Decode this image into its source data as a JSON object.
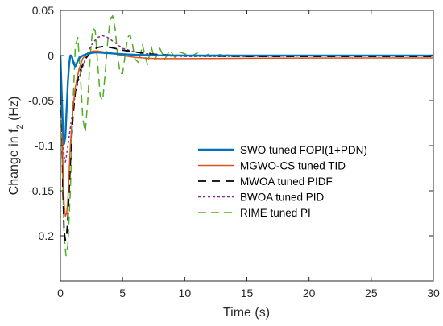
{
  "chart_data": {
    "type": "line",
    "xlabel": "Time (s)",
    "ylabel_main": "Change in f",
    "ylabel_subscript": "2",
    "ylabel_suffix": " (Hz)",
    "xlim": [
      0,
      30
    ],
    "ylim": [
      -0.25,
      0.05
    ],
    "xticks": [
      0,
      5,
      10,
      15,
      20,
      25,
      30
    ],
    "yticks": [
      0.05,
      0,
      -0.05,
      -0.1,
      -0.15,
      -0.2
    ],
    "ytick_labels": [
      "0.05",
      "0",
      "-0.05",
      "-0.1",
      "-0.15",
      "-0.2"
    ],
    "grid": false,
    "legend_position": "middle-right",
    "series": [
      {
        "name": "SWO tuned FOPI(1+PDN)",
        "color": "#0072BD",
        "dash": "solid",
        "width": 2.4,
        "x": [
          0,
          0.1,
          0.2,
          0.3,
          0.4,
          0.5,
          0.6,
          0.7,
          0.8,
          0.9,
          1.0,
          1.1,
          1.2,
          1.3,
          1.5,
          1.8,
          2.2,
          2.6,
          3.0,
          3.5,
          4.0,
          5.0,
          6.0,
          8.0,
          10.0,
          15.0,
          20.0,
          30.0
        ],
        "y": [
          0,
          -0.04,
          -0.08,
          -0.098,
          -0.09,
          -0.06,
          -0.03,
          -0.01,
          0.0,
          0.0,
          -0.005,
          -0.01,
          -0.012,
          -0.009,
          -0.003,
          0.0,
          0.002,
          0.0032,
          0.0035,
          0.003,
          0.0025,
          0.0015,
          0.0008,
          0.0002,
          0.0,
          0.0,
          0.0,
          0.0
        ]
      },
      {
        "name": "MGWO-CS tuned TID",
        "color": "#D95319",
        "dash": "solid",
        "width": 1.5,
        "x": [
          0,
          0.1,
          0.2,
          0.3,
          0.4,
          0.5,
          0.6,
          0.7,
          0.8,
          1.0,
          1.2,
          1.5,
          1.8,
          2.2,
          2.6,
          3.0,
          3.5,
          4.0,
          5.0,
          6.0,
          7.0,
          8.0,
          10.0,
          12.0,
          15.0,
          20.0,
          25.0,
          30.0
        ],
        "y": [
          0,
          -0.05,
          -0.12,
          -0.165,
          -0.178,
          -0.175,
          -0.16,
          -0.13,
          -0.1,
          -0.06,
          -0.035,
          -0.015,
          -0.003,
          0.003,
          0.005,
          0.005,
          0.004,
          0.003,
          0.0,
          -0.002,
          -0.003,
          -0.0035,
          -0.0035,
          -0.0033,
          -0.003,
          -0.0028,
          -0.0027,
          -0.0027
        ]
      },
      {
        "name": "MWOA tuned PIDF",
        "color": "#000000",
        "dash": "10,7",
        "width": 1.8,
        "x": [
          0,
          0.1,
          0.2,
          0.3,
          0.4,
          0.5,
          0.6,
          0.7,
          0.8,
          1.0,
          1.2,
          1.5,
          1.8,
          2.0,
          2.5,
          3.0,
          3.5,
          4.0,
          5.0,
          6.0,
          7.0,
          8.0,
          10.0,
          12.0,
          15.0,
          20.0,
          25.0,
          30.0
        ],
        "y": [
          0,
          -0.06,
          -0.15,
          -0.195,
          -0.205,
          -0.2,
          -0.18,
          -0.15,
          -0.12,
          -0.07,
          -0.04,
          -0.02,
          -0.01,
          -0.004,
          0.005,
          0.009,
          0.01,
          0.009,
          0.006,
          0.004,
          0.002,
          0.001,
          0.0,
          -0.0005,
          -0.001,
          -0.001,
          -0.001,
          -0.001
        ]
      },
      {
        "name": "BWOA tuned PID",
        "color": "#7E2F8E",
        "dash": "3,3",
        "width": 1.5,
        "x": [
          0,
          0.1,
          0.2,
          0.3,
          0.4,
          0.5,
          0.6,
          0.8,
          1.0,
          1.2,
          1.5,
          1.8,
          2.0,
          2.3,
          2.6,
          3.0,
          3.4,
          3.8,
          4.3,
          5.0,
          6.0,
          7.0,
          8.0,
          10.0,
          12.0,
          15.0,
          20.0,
          25.0,
          30.0
        ],
        "y": [
          0,
          -0.04,
          -0.09,
          -0.112,
          -0.118,
          -0.11,
          -0.1,
          -0.08,
          -0.06,
          -0.042,
          -0.025,
          -0.012,
          -0.004,
          0.006,
          0.014,
          0.02,
          0.022,
          0.02,
          0.015,
          0.008,
          0.004,
          0.002,
          0.0,
          -0.001,
          -0.001,
          -0.001,
          -0.0005,
          -0.0005,
          -0.0005
        ]
      },
      {
        "name": "RIME tuned PI",
        "color": "#4DAF21",
        "dash": "10,6",
        "width": 1.5,
        "x": [
          0,
          0.15,
          0.3,
          0.45,
          0.6,
          0.8,
          1.0,
          1.2,
          1.4,
          1.6,
          1.8,
          2.0,
          2.2,
          2.4,
          2.6,
          2.8,
          3.0,
          3.2,
          3.4,
          3.6,
          3.8,
          4.0,
          4.2,
          4.4,
          4.6,
          4.8,
          5.0,
          5.2,
          5.4,
          5.6,
          5.8,
          6.0,
          6.3,
          6.6,
          7.0,
          7.3,
          7.6,
          8.0,
          8.4,
          8.8,
          9.2,
          9.6,
          10.0,
          10.5,
          11.0,
          11.5,
          12.0,
          12.5,
          13.0,
          14.0,
          15.0,
          16.0,
          18.0,
          20.0,
          25.0,
          30.0
        ],
        "y": [
          0,
          -0.12,
          -0.2,
          -0.222,
          -0.21,
          -0.15,
          -0.06,
          0.01,
          0.02,
          -0.02,
          -0.07,
          -0.085,
          -0.05,
          0.0,
          0.03,
          0.028,
          -0.01,
          -0.045,
          -0.05,
          -0.02,
          0.015,
          0.04,
          0.044,
          0.03,
          0.0,
          -0.02,
          -0.02,
          0.0,
          0.02,
          0.023,
          0.012,
          -0.004,
          -0.008,
          0.012,
          -0.01,
          0.01,
          -0.005,
          0.008,
          -0.004,
          0.006,
          -0.002,
          0.004,
          0.002,
          -0.001,
          0.003,
          -0.001,
          0.002,
          0.0,
          0.0015,
          -0.0005,
          0.0,
          0.0,
          0.0,
          0.0,
          0.0,
          0.0
        ]
      }
    ]
  }
}
